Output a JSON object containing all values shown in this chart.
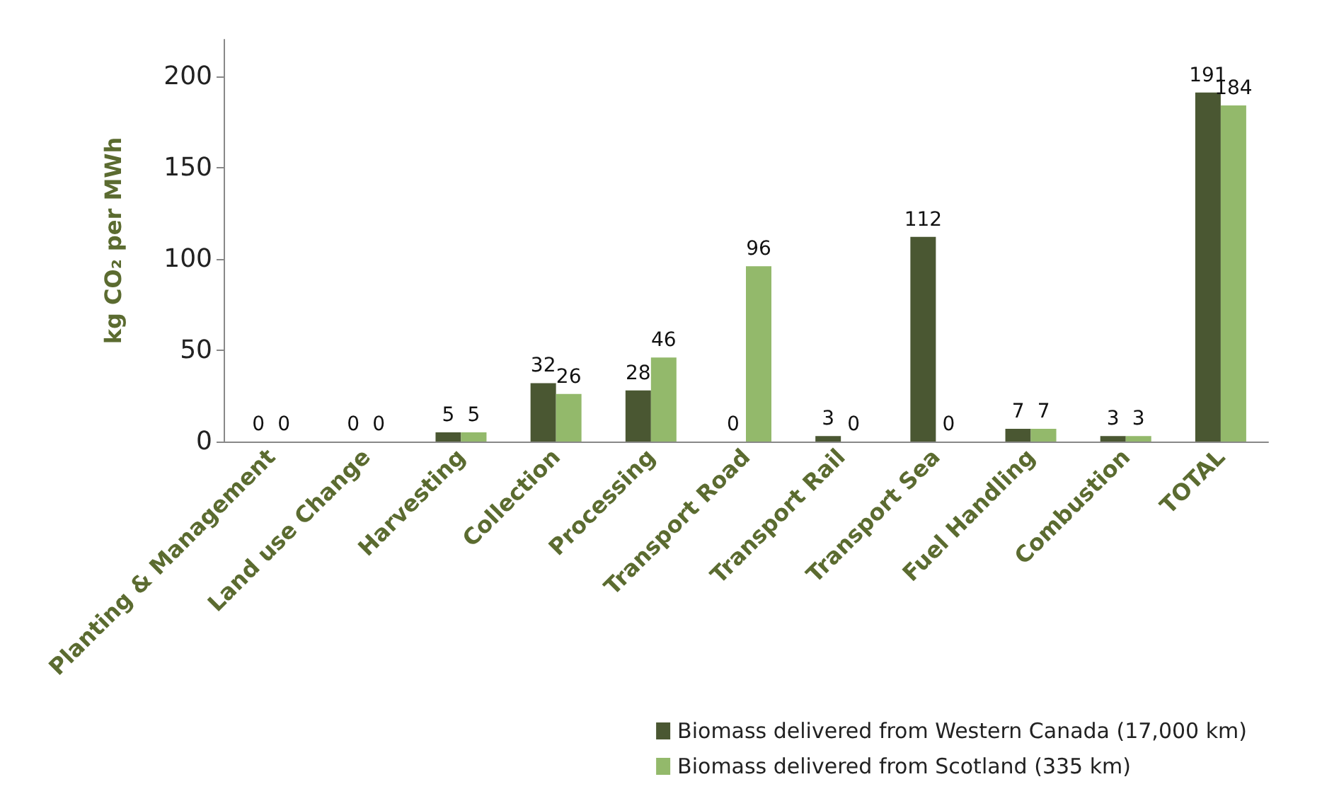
{
  "chart_data": {
    "type": "bar",
    "ylabel": "kg CO₂ per MWh",
    "categories": [
      "Planting & Management",
      "Land use Change",
      "Harvesting",
      "Collection",
      "Processing",
      "Transport Road",
      "Transport Rail",
      "Transport Sea",
      "Fuel Handling",
      "Combustion",
      "TOTAL"
    ],
    "series": [
      {
        "name": "Biomass delivered from Western Canada (17,000 km)",
        "color": "#4a5732",
        "values": [
          0,
          0,
          5,
          32,
          28,
          0,
          3,
          112,
          7,
          3,
          191
        ]
      },
      {
        "name": "Biomass delivered from Scotland (335 km)",
        "color": "#93b96b",
        "values": [
          0,
          0,
          5,
          26,
          46,
          96,
          0,
          0,
          7,
          3,
          184
        ]
      }
    ],
    "ylim": [
      0,
      220
    ],
    "yticks": [
      0,
      50,
      100,
      150,
      200
    ],
    "grid": false,
    "legend": "bottom right",
    "data_labels": true
  }
}
